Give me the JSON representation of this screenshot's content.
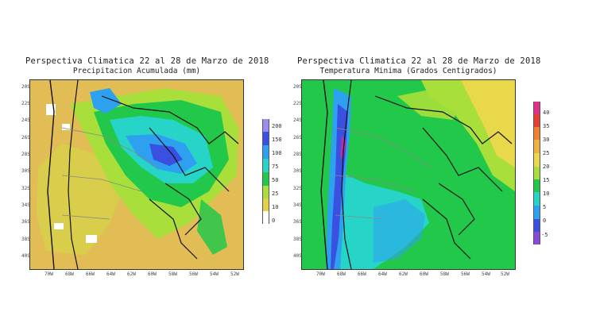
{
  "left_panel": {
    "title": "Perspectiva Climatica 22 al 28 de Marzo de 2018",
    "subtitle": "Precipitacion Acumulada (mm)",
    "lat_ticks": [
      "20S",
      "22S",
      "24S",
      "26S",
      "28S",
      "30S",
      "32S",
      "34S",
      "36S",
      "38S",
      "40S"
    ],
    "lon_ticks": [
      "70W",
      "68W",
      "66W",
      "64W",
      "62W",
      "60W",
      "58W",
      "56W",
      "54W",
      "52W"
    ],
    "colorbar": {
      "labels": [
        "200",
        "150",
        "100",
        "75",
        "50",
        "25",
        "10",
        "0"
      ],
      "colors": [
        "#9b8cf0",
        "#3a50e0",
        "#2ea0f0",
        "#27d4c8",
        "#22c84a",
        "#a8df3a",
        "#e4d14a",
        "#ffffff"
      ]
    },
    "palette": {
      "dry": "#e2bd55",
      "light": "#d8cf4a",
      "moderate": "#a8df3a",
      "wet": "#22c84a",
      "heavy": "#27d4c8",
      "very_heavy": "#2ea0f0",
      "extreme": "#3a50e0"
    }
  },
  "right_panel": {
    "title": "Perspectiva Climatica 22 al 28 de Marzo de 2018",
    "subtitle": "Temperatura Minima (Grados Centigrados)",
    "lat_ticks": [
      "20S",
      "22S",
      "24S",
      "26S",
      "28S",
      "30S",
      "32S",
      "34S",
      "36S",
      "38S",
      "40S"
    ],
    "lon_ticks": [
      "70W",
      "68W",
      "66W",
      "64W",
      "62W",
      "60W",
      "58W",
      "56W",
      "54W",
      "52W"
    ],
    "colorbar": {
      "labels": [
        "40",
        "35",
        "30",
        "25",
        "20",
        "15",
        "10",
        "5",
        "0",
        "-5"
      ],
      "colors": [
        "#e0308a",
        "#e84030",
        "#f08030",
        "#f0b040",
        "#e8d84a",
        "#a8df3a",
        "#22c84a",
        "#27d4c8",
        "#2ea0f0",
        "#3a50e0",
        "#8a4ad8"
      ]
    },
    "palette": {
      "warm": "#e8d84a",
      "mild": "#22c84a",
      "cool": "#27d4c8",
      "cold": "#2ea0f0",
      "very_cold": "#3a50e0",
      "frost": "#b030b0"
    }
  }
}
